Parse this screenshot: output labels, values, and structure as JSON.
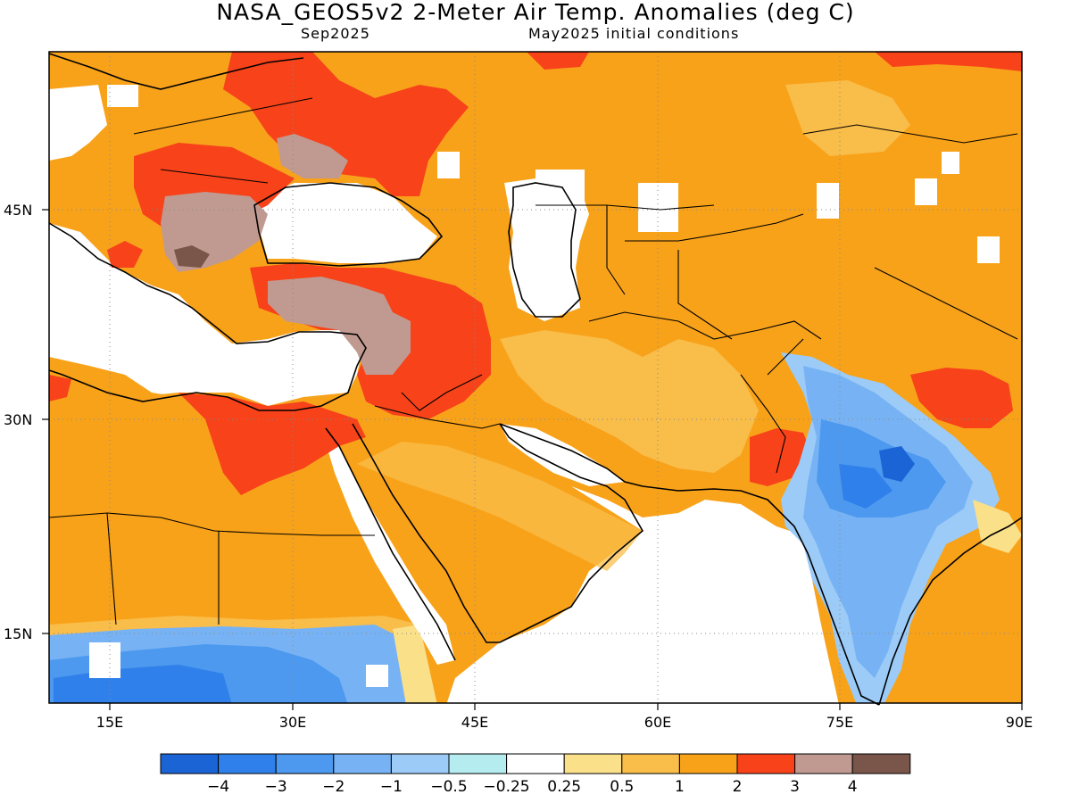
{
  "header": {
    "title": "NASA_GEOS5v2 2-Meter Air Temp. Anomalies (deg C)",
    "forecast_month": "Sep2025",
    "initial_conditions": "May2025 initial conditions"
  },
  "map": {
    "lon_range": [
      10,
      90
    ],
    "lat_range": [
      10,
      55
    ],
    "lat_labels": [
      "45N",
      "30N",
      "15N"
    ],
    "lon_labels": [
      "15E",
      "30E",
      "45E",
      "60E",
      "75E",
      "90E"
    ],
    "region": "Middle East, North Africa, Central and South Asia"
  },
  "colorbar": {
    "labels": [
      "−4",
      "−3",
      "−2",
      "−1",
      "−0.5",
      "−0.25",
      "0.25",
      "0.5",
      "1",
      "2",
      "3",
      "4"
    ],
    "colors": [
      "#1a64d6",
      "#2f80ea",
      "#4c99ef",
      "#77b3f4",
      "#9ccbf7",
      "#b4ecf0",
      "#ffffff",
      "#fbe08a",
      "#f9bd4a",
      "#f8a21a",
      "#f7421a",
      "#c09a91",
      "#7a554a"
    ]
  }
}
